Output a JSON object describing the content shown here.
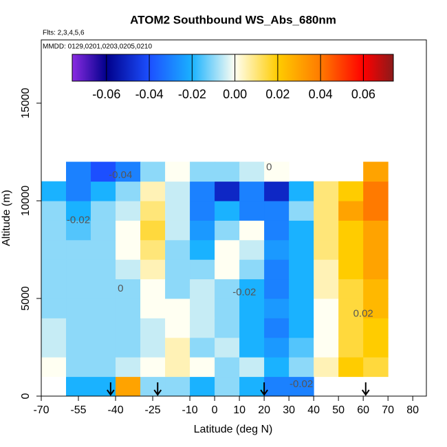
{
  "chart_data": {
    "type": "heatmap",
    "title": "ATOM2 Southbound WS_Abs_680nm",
    "subtitle": "Flts: 2,3,4,5,6",
    "annotation": "MMDD: 0129,0201,0203,0205,0210",
    "x_label": "Latitude (deg N)",
    "y_label": "Altitude (m)",
    "xlim": [
      -70,
      85.5
    ],
    "ylim": [
      0,
      18240
    ],
    "xticks": [
      -70,
      -55,
      -40,
      -25,
      -10,
      0,
      10,
      20,
      30,
      40,
      50,
      60,
      70,
      80
    ],
    "yticks": [
      0,
      5000,
      10000,
      15000
    ],
    "x_bins": [
      -70,
      -60,
      -50,
      -40,
      -30,
      -20,
      -10,
      0,
      10,
      20,
      30,
      40,
      50,
      60,
      70
    ],
    "y_bins": [
      0,
      1000,
      2000,
      3000,
      4000,
      5000,
      6000,
      7000,
      8000,
      9000,
      10000,
      11000,
      12000
    ],
    "z": [
      [
        null,
        -0.02,
        -0.02,
        0.03,
        -0.01,
        -0.01,
        -0.02,
        -0.01,
        -0.02,
        -0.03,
        -0.03,
        null,
        null,
        null
      ],
      [
        0.0,
        -0.01,
        -0.01,
        -0.005,
        0.0,
        0.005,
        0.0,
        -0.01,
        -0.005,
        -0.02,
        -0.01,
        0.005,
        0.02,
        0.015
      ],
      [
        -0.005,
        -0.01,
        -0.01,
        -0.01,
        -0.005,
        0.005,
        -0.01,
        -0.005,
        -0.02,
        -0.025,
        -0.015,
        0.0,
        0.015,
        0.02
      ],
      [
        -0.005,
        -0.01,
        -0.01,
        -0.01,
        -0.005,
        0.0,
        -0.005,
        -0.01,
        -0.02,
        -0.03,
        -0.02,
        0.0,
        0.015,
        0.02
      ],
      [
        -0.01,
        -0.01,
        -0.01,
        -0.01,
        0.0,
        0.0,
        -0.005,
        -0.01,
        -0.02,
        -0.025,
        -0.02,
        0.0,
        0.015,
        0.025
      ],
      [
        -0.01,
        -0.01,
        -0.01,
        -0.01,
        0.0,
        -0.01,
        -0.005,
        -0.01,
        -0.02,
        -0.03,
        -0.02,
        0.005,
        0.015,
        0.025
      ],
      [
        -0.01,
        -0.01,
        -0.01,
        -0.005,
        0.005,
        -0.01,
        -0.01,
        0.0,
        -0.01,
        -0.03,
        -0.02,
        0.005,
        0.02,
        0.03
      ],
      [
        -0.01,
        -0.01,
        -0.01,
        0.0,
        0.01,
        -0.01,
        -0.02,
        0.0,
        -0.005,
        -0.025,
        -0.02,
        0.01,
        0.02,
        0.03
      ],
      [
        -0.01,
        -0.015,
        -0.01,
        0.0,
        0.015,
        -0.005,
        -0.025,
        -0.01,
        0.0,
        -0.03,
        -0.02,
        0.01,
        0.02,
        0.03
      ],
      [
        -0.01,
        -0.02,
        -0.01,
        -0.005,
        0.01,
        -0.005,
        -0.03,
        -0.02,
        -0.03,
        -0.03,
        -0.01,
        0.01,
        0.03,
        0.04
      ],
      [
        -0.02,
        -0.03,
        -0.02,
        -0.01,
        0.005,
        -0.005,
        -0.03,
        -0.05,
        -0.03,
        -0.05,
        -0.02,
        0.01,
        0.02,
        0.04
      ],
      [
        null,
        -0.03,
        -0.04,
        -0.03,
        -0.01,
        0.0,
        -0.01,
        -0.01,
        -0.005,
        0.0,
        null,
        null,
        null,
        0.03
      ]
    ],
    "colorscale": [
      [
        -0.076,
        "#8a2be2"
      ],
      [
        -0.06,
        "#00008b"
      ],
      [
        -0.04,
        "#1c4fff"
      ],
      [
        -0.02,
        "#1ab2ff"
      ],
      [
        0,
        "#fffff2"
      ],
      [
        0.02,
        "#ffcc00"
      ],
      [
        0.04,
        "#ff7a00"
      ],
      [
        0.06,
        "#ff0000"
      ],
      [
        0.074,
        "#8b1a1a"
      ]
    ],
    "colorbar_ticks": [
      -0.06,
      -0.04,
      -0.02,
      {
        "value": 0,
        "label": "0.00"
      },
      0.02,
      0.04,
      0.06
    ],
    "contour_labels": [
      {
        "text": "-0.04",
        "x": -38,
        "y": 11300
      },
      {
        "text": "-0.02",
        "x": -55,
        "y": 9000
      },
      {
        "text": "0",
        "x": -38,
        "y": 5500
      },
      {
        "text": "-0.02",
        "x": 12,
        "y": 5300
      },
      {
        "text": "0.02",
        "x": 60,
        "y": 4200
      },
      {
        "text": "-0.02",
        "x": 35,
        "y": 600
      },
      {
        "text": "0",
        "x": 22,
        "y": 11700
      }
    ],
    "flight_markers": [
      -42,
      -23,
      20,
      61
    ]
  }
}
